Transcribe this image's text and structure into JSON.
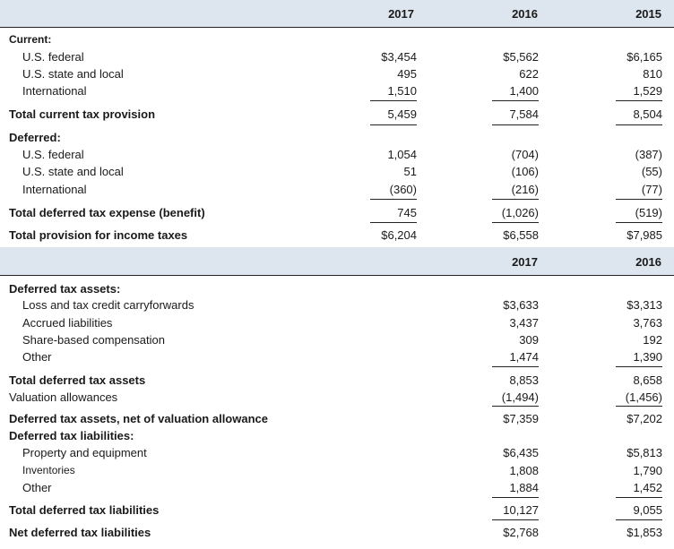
{
  "income_tax_table": {
    "headers": [
      "2017",
      "2016",
      "2015"
    ],
    "current_title": "Current:",
    "current_rows": [
      {
        "label": "U.S. federal",
        "v": [
          "$3,454",
          "$5,562",
          "$6,165"
        ]
      },
      {
        "label": "U.S. state and local",
        "v": [
          "495",
          "622",
          "810"
        ]
      },
      {
        "label": "International",
        "v": [
          "1,510",
          "1,400",
          "1,529"
        ]
      }
    ],
    "total_current": {
      "label": "Total current tax provision",
      "v": [
        "5,459",
        "7,584",
        "8,504"
      ]
    },
    "deferred_title": "Deferred:",
    "deferred_rows": [
      {
        "label": "U.S. federal",
        "v": [
          "1,054",
          "(704)",
          "(387)"
        ]
      },
      {
        "label": "U.S. state and local",
        "v": [
          "51",
          "(106)",
          "(55)"
        ]
      },
      {
        "label": "International",
        "v": [
          "(360)",
          "(216)",
          "(77)"
        ]
      }
    ],
    "total_deferred": {
      "label": "Total deferred tax expense (benefit)",
      "v": [
        "745",
        "(1,026)",
        "(519)"
      ]
    },
    "total_provision": {
      "label": "Total provision for income taxes",
      "v": [
        "$6,204",
        "$6,558",
        "$7,985"
      ]
    }
  },
  "deferred_tax_table": {
    "headers": [
      "2017",
      "2016"
    ],
    "assets_title": "Deferred tax assets:",
    "asset_rows": [
      {
        "label": "Loss and tax credit carryforwards",
        "v": [
          "$3,633",
          "$3,313"
        ]
      },
      {
        "label": "Accrued liabilities",
        "v": [
          "3,437",
          "3,763"
        ]
      },
      {
        "label": "Share-based compensation",
        "v": [
          "309",
          "192"
        ]
      },
      {
        "label": "Other",
        "v": [
          "1,474",
          "1,390"
        ]
      }
    ],
    "total_assets": {
      "label": "Total deferred tax assets",
      "v": [
        "8,853",
        "8,658"
      ]
    },
    "valuation": {
      "label": "Valuation allowances",
      "v": [
        "(1,494)",
        "(1,456)"
      ]
    },
    "net_assets": {
      "label": "Deferred tax assets, net of valuation allowance",
      "v": [
        "$7,359",
        "$7,202"
      ]
    },
    "liabilities_title": "Deferred tax liabilities:",
    "liability_rows": [
      {
        "label": "Property and equipment",
        "v": [
          "$6,435",
          "$5,813"
        ]
      },
      {
        "label": "Inventories",
        "v": [
          "1,808",
          "1,790"
        ]
      },
      {
        "label": "Other",
        "v": [
          "1,884",
          "1,452"
        ]
      }
    ],
    "total_liabilities": {
      "label": "Total deferred tax liabilities",
      "v": [
        "10,127",
        "9,055"
      ]
    },
    "net_liabilities": {
      "label": "Net deferred tax liabilities",
      "v": [
        "$2,768",
        "$1,853"
      ]
    }
  }
}
